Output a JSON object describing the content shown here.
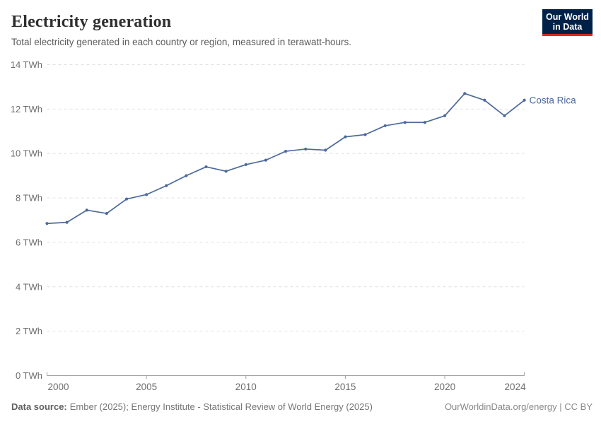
{
  "header": {
    "title": "Electricity generation",
    "subtitle": "Total electricity generated in each country or region, measured in terawatt-hours.",
    "logo": {
      "line1": "Our World",
      "line2": "in Data"
    }
  },
  "footer": {
    "source_label": "Data source:",
    "source_text": "Ember (2025); Energy Institute - Statistical Review of World Energy (2025)",
    "license": "OurWorldinData.org/energy | CC BY"
  },
  "chart_data": {
    "type": "line",
    "title": "Electricity generation",
    "unit": "TWh",
    "xlim": [
      2000,
      2024
    ],
    "ylim": [
      0,
      14
    ],
    "grid": "horizontal-dashed",
    "legend_position": "end-of-line-label",
    "xticks": [
      2000,
      2005,
      2010,
      2015,
      2020,
      2024
    ],
    "yticks": [
      0,
      2,
      4,
      6,
      8,
      10,
      12,
      14
    ],
    "ytick_suffix": " TWh",
    "series": [
      {
        "name": "Costa Rica",
        "color": "#4C6A9C",
        "x": [
          2000,
          2001,
          2002,
          2003,
          2004,
          2005,
          2006,
          2007,
          2008,
          2009,
          2010,
          2011,
          2012,
          2013,
          2014,
          2015,
          2016,
          2017,
          2018,
          2019,
          2020,
          2021,
          2022,
          2023,
          2024
        ],
        "values": [
          6.85,
          6.9,
          7.45,
          7.3,
          7.95,
          8.15,
          8.55,
          9.0,
          9.4,
          9.2,
          9.5,
          9.7,
          10.1,
          10.2,
          10.15,
          10.75,
          10.85,
          11.25,
          11.4,
          11.4,
          11.7,
          12.7,
          12.4,
          11.7,
          12.4
        ]
      }
    ]
  },
  "colors": {
    "line": "#4C6A9C",
    "grid": "#e0e0e0",
    "axis": "#a1a1a1",
    "tick_label": "#6d6d6d"
  }
}
